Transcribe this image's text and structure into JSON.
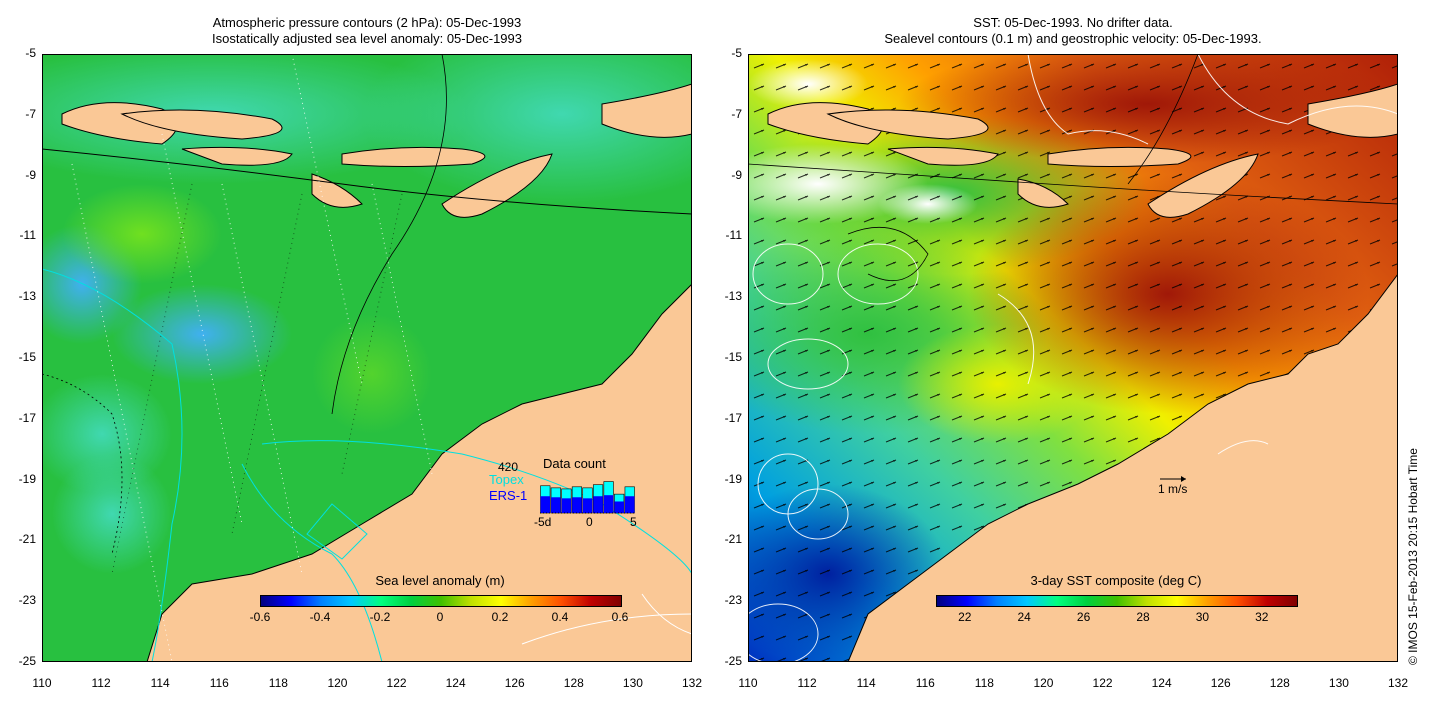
{
  "left_panel": {
    "title_line1": "Atmospheric pressure contours (2 hPa): 05-Dec-1993",
    "title_line2": "Isostatically adjusted sea level anomaly: 05-Dec-1993",
    "colorbar": {
      "title": "Sea level anomaly (m)",
      "min": -0.6,
      "max": 0.6,
      "ticks": [
        "-0.6",
        "-0.4",
        "-0.2",
        "0",
        "0.2",
        "0.4",
        "0.6"
      ],
      "colors": [
        "#00007f",
        "#0000ff",
        "#0080ff",
        "#00c8ff",
        "#00ff80",
        "#00d040",
        "#40c000",
        "#c0e000",
        "#ffff00",
        "#ffa000",
        "#ff5000",
        "#c00000",
        "#800000"
      ]
    },
    "data_count": {
      "title": "Data count",
      "max_label": "420",
      "series": [
        {
          "name": "Topex",
          "color": "#00ffff"
        },
        {
          "name": "ERS-1",
          "color": "#0000ff"
        }
      ],
      "x_labels": [
        "-5d",
        "0",
        "5"
      ],
      "topex_values": [
        260,
        240,
        230,
        250,
        240,
        270,
        300,
        180,
        250
      ],
      "ers_values": [
        160,
        150,
        140,
        150,
        140,
        160,
        170,
        110,
        160
      ]
    }
  },
  "right_panel": {
    "title_line1": "SST: 05-Dec-1993. No drifter data.",
    "title_line2": "Sealevel contours (0.1 m) and geostrophic velocity: 05-Dec-1993.",
    "colorbar": {
      "title": "3-day SST composite (deg C)",
      "ticks": [
        "22",
        "24",
        "26",
        "28",
        "30",
        "32"
      ],
      "colors": [
        "#00007f",
        "#0000ff",
        "#0080ff",
        "#00c8ff",
        "#00ff80",
        "#00d040",
        "#40c000",
        "#c0e000",
        "#ffff00",
        "#ffa000",
        "#ff5000",
        "#c00000",
        "#800000"
      ]
    },
    "velocity_scale_label": "1 m/s"
  },
  "axes": {
    "lat_labels": [
      "-5",
      "-7",
      "-9",
      "-11",
      "-13",
      "-15",
      "-17",
      "-19",
      "-21",
      "-23",
      "-25"
    ],
    "lon_labels": [
      "110",
      "112",
      "114",
      "116",
      "118",
      "120",
      "122",
      "124",
      "126",
      "128",
      "130",
      "132"
    ],
    "lat_range": [
      -25,
      -5
    ],
    "lon_range": [
      110,
      132
    ]
  },
  "copyright": "© IMOS 15-Feb-2013 20:15 Hobart Time",
  "colors": {
    "land": "#fac896",
    "sea_green": "#28c040",
    "sea_cyan": "#40d0a0",
    "sst_warm": "#d04010"
  }
}
